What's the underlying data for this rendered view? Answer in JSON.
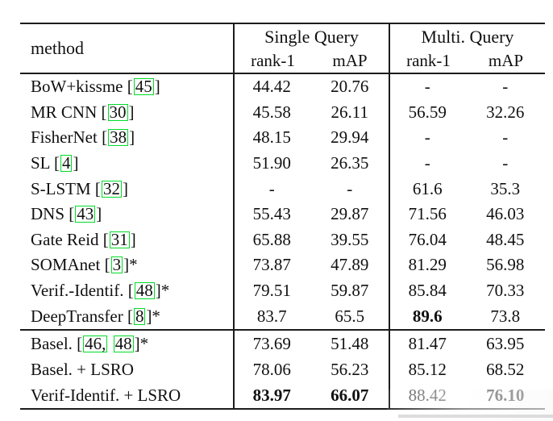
{
  "colors": {
    "background": "#ffffff",
    "rule": "#1c1c1c",
    "text": "#101010",
    "citation_box": "#00dc28",
    "artifact_gray": "#d5d5d5"
  },
  "table": {
    "header": {
      "method_label": "method",
      "groups": [
        {
          "label": "Single Query"
        },
        {
          "label": "Multi. Query"
        }
      ],
      "subheaders": [
        "rank-1",
        "mAP",
        "rank-1",
        "mAP"
      ]
    },
    "columns": [
      "method",
      "single_rank1",
      "single_mAP",
      "multi_rank1",
      "multi_mAP"
    ],
    "rows_published": [
      {
        "method_parts": [
          {
            "t": "BoW+kissme ["
          },
          {
            "c": "45"
          },
          {
            "t": "]"
          }
        ],
        "values": [
          "44.42",
          "20.76",
          "-",
          "-"
        ]
      },
      {
        "method_parts": [
          {
            "t": "MR CNN ["
          },
          {
            "c": "30"
          },
          {
            "t": "]"
          }
        ],
        "values": [
          "45.58",
          "26.11",
          "56.59",
          "32.26"
        ]
      },
      {
        "method_parts": [
          {
            "t": "FisherNet ["
          },
          {
            "c": "38"
          },
          {
            "t": "]"
          }
        ],
        "values": [
          "48.15",
          "29.94",
          "-",
          "-"
        ]
      },
      {
        "method_parts": [
          {
            "t": "SL ["
          },
          {
            "c": "4"
          },
          {
            "t": "]"
          }
        ],
        "values": [
          "51.90",
          "26.35",
          "-",
          "-"
        ]
      },
      {
        "method_parts": [
          {
            "t": "S-LSTM ["
          },
          {
            "c": "32"
          },
          {
            "t": "]"
          }
        ],
        "values": [
          "-",
          "-",
          "61.6",
          "35.3"
        ]
      },
      {
        "method_parts": [
          {
            "t": "DNS ["
          },
          {
            "c": "43"
          },
          {
            "t": "]"
          }
        ],
        "values": [
          "55.43",
          "29.87",
          "71.56",
          "46.03"
        ]
      },
      {
        "method_parts": [
          {
            "t": "Gate Reid ["
          },
          {
            "c": "31"
          },
          {
            "t": "]"
          }
        ],
        "values": [
          "65.88",
          "39.55",
          "76.04",
          "48.45"
        ]
      },
      {
        "method_parts": [
          {
            "t": "SOMAnet ["
          },
          {
            "c": "3"
          },
          {
            "t": "]*"
          }
        ],
        "values": [
          "73.87",
          "47.89",
          "81.29",
          "56.98"
        ]
      },
      {
        "method_parts": [
          {
            "t": "Verif.-Identif. ["
          },
          {
            "c": "48"
          },
          {
            "t": "]*"
          }
        ],
        "values": [
          "79.51",
          "59.87",
          "85.84",
          "70.33"
        ]
      },
      {
        "method_parts": [
          {
            "t": "DeepTransfer ["
          },
          {
            "c": "8"
          },
          {
            "t": "]*"
          }
        ],
        "values": [
          "83.7",
          "65.5",
          "89.6",
          "73.8"
        ],
        "bold": [
          2
        ]
      }
    ],
    "rows_ours": [
      {
        "method_parts": [
          {
            "t": "Basel. ["
          },
          {
            "c": "46,"
          },
          {
            "t": " "
          },
          {
            "c": "48"
          },
          {
            "t": "]*"
          }
        ],
        "values": [
          "73.69",
          "51.48",
          "81.47",
          "63.95"
        ]
      },
      {
        "method_parts": [
          {
            "t": "Basel. + LSRO"
          }
        ],
        "values": [
          "78.06",
          "56.23",
          "85.12",
          "68.52"
        ]
      },
      {
        "method_parts": [
          {
            "t": "Verif-Identif. + LSRO"
          }
        ],
        "values": [
          "83.97",
          "66.07",
          "88.42",
          "76.10"
        ],
        "bold": [
          0,
          1,
          3
        ],
        "fade": [
          2
        ]
      }
    ]
  }
}
